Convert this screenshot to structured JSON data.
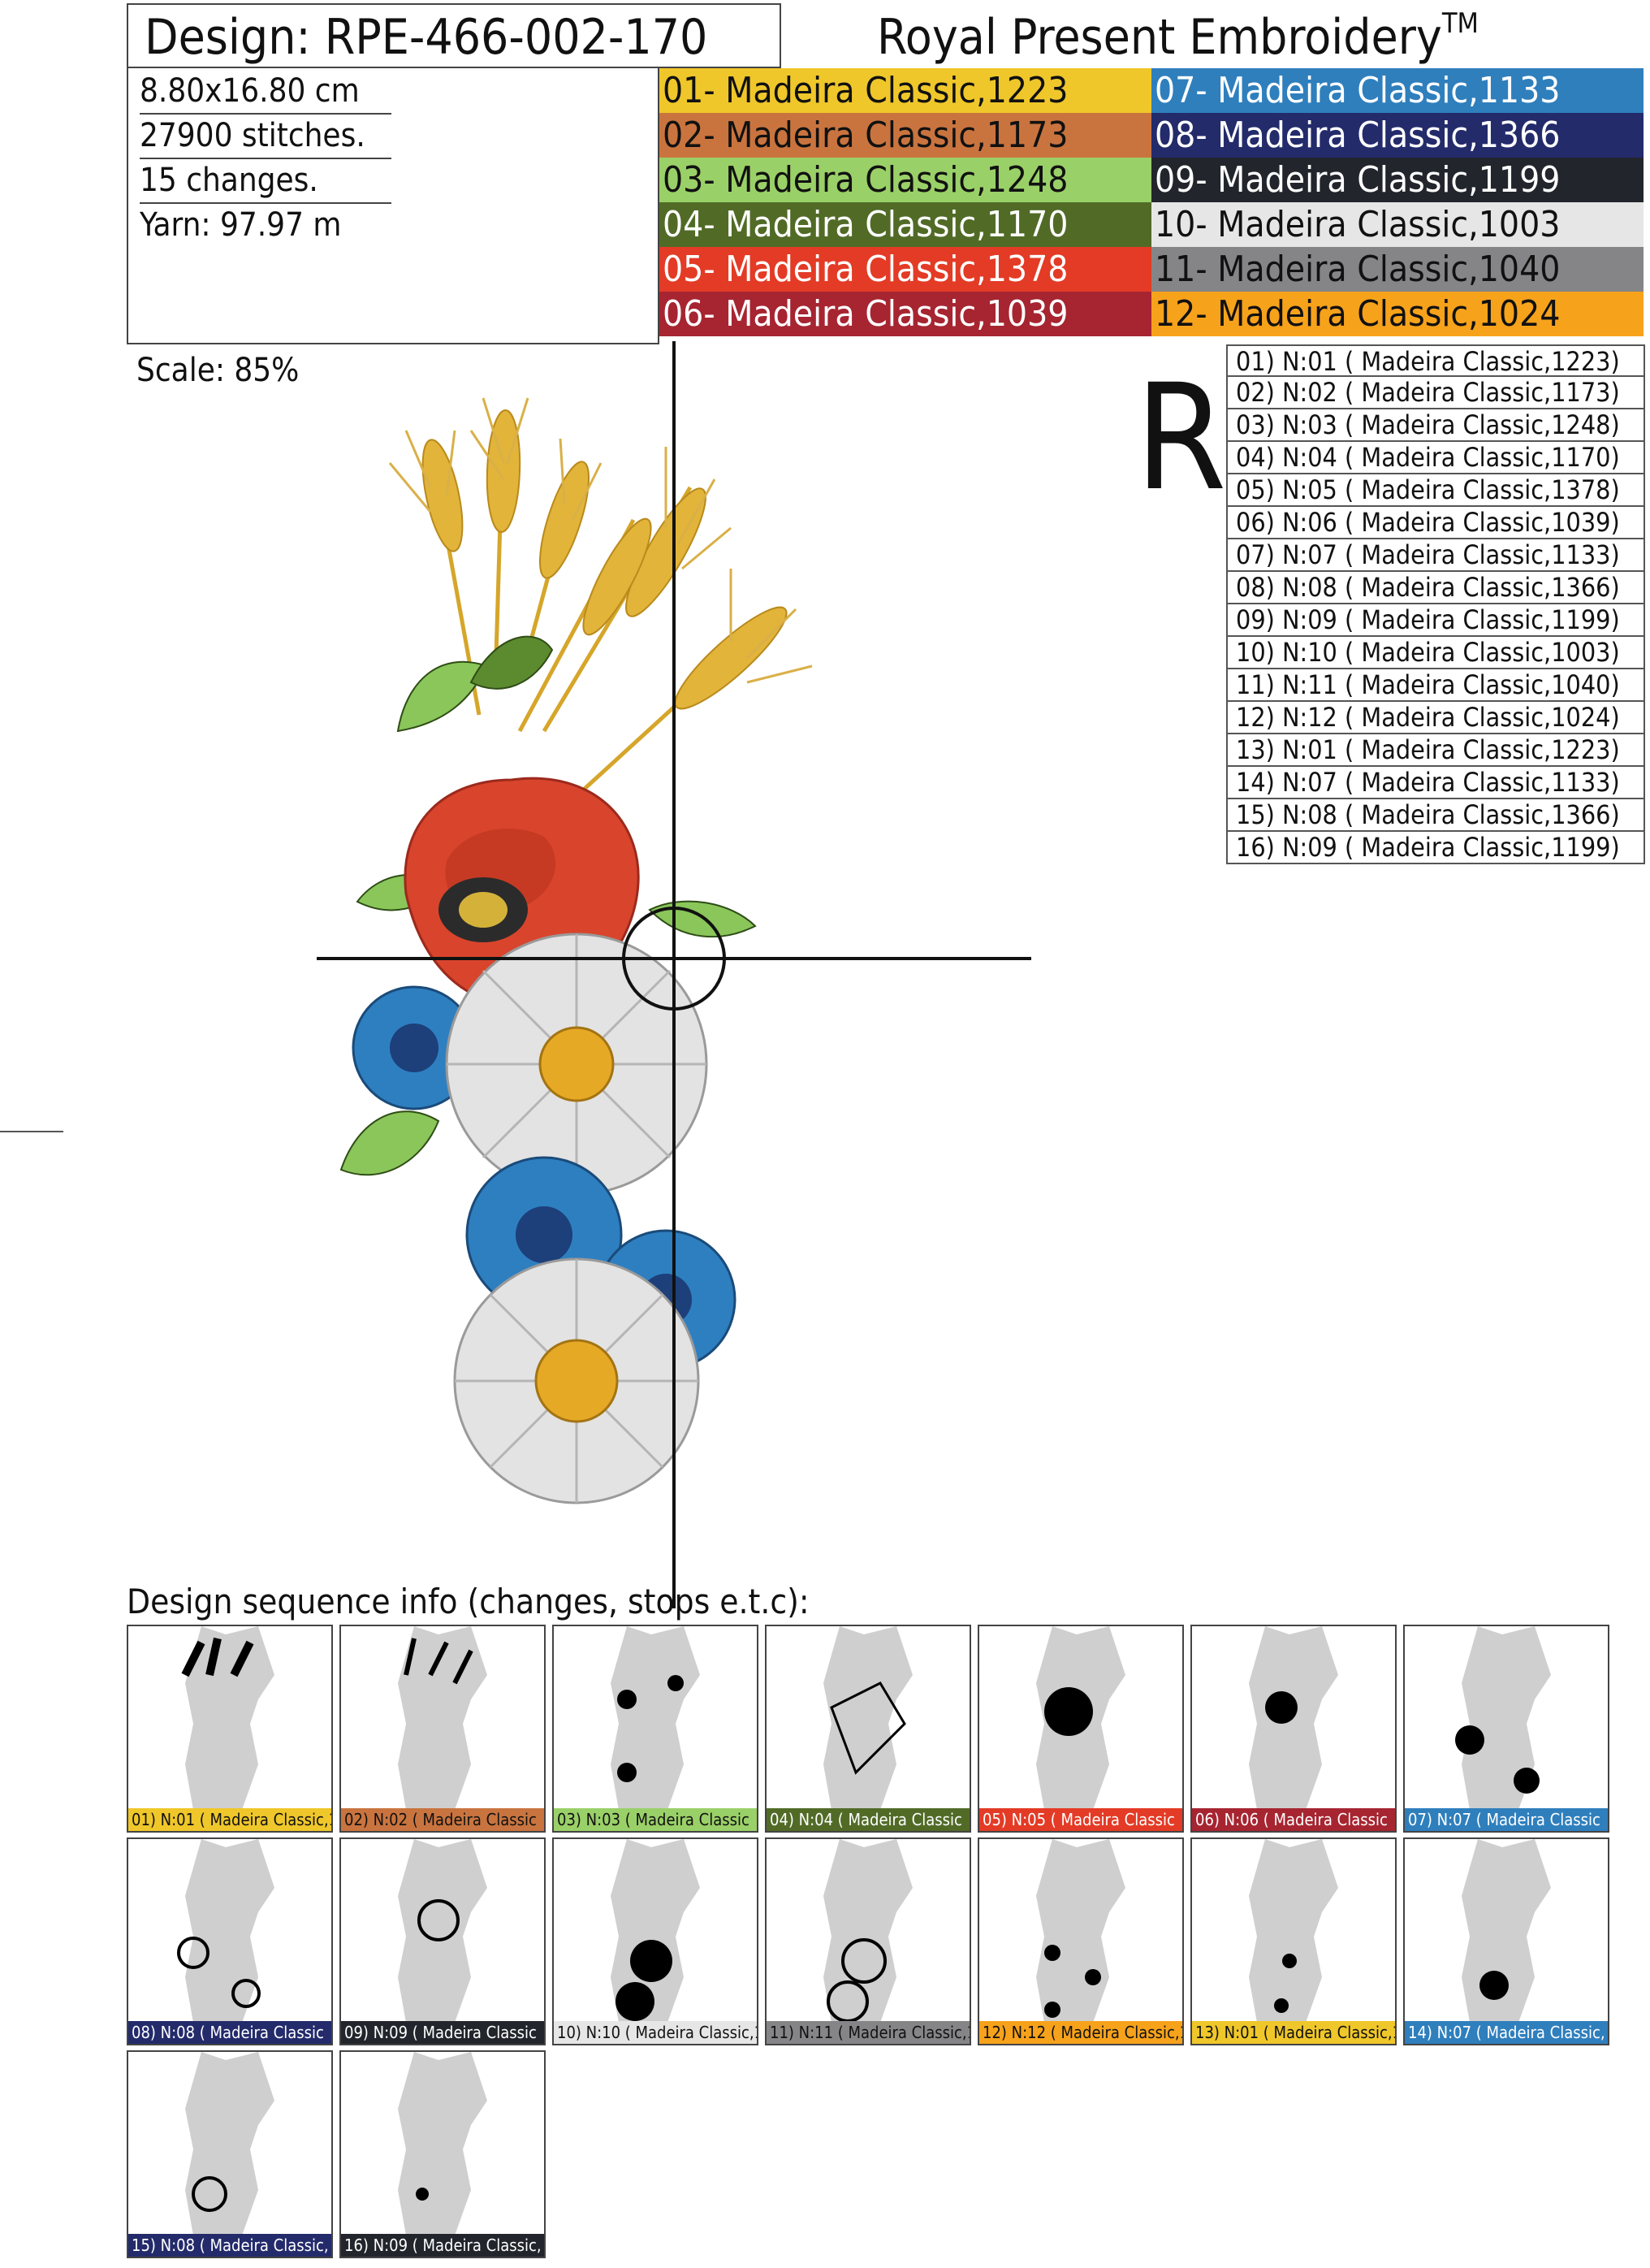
{
  "header": {
    "design_title": "Design: RPE-466-002-170",
    "brand": "Royal Present Embroidery",
    "trademark": "TM"
  },
  "info": {
    "size": "8.80x16.80 cm",
    "stitches": "27900 stitches.",
    "changes": "15 changes.",
    "yarn": "Yarn: 97.97 m"
  },
  "palette": [
    {
      "label": "01- Madeira Classic,1223",
      "color": "#efc72a",
      "text_color": "#111111"
    },
    {
      "label": "02- Madeira Classic,1173",
      "color": "#c9743f",
      "text_color": "#111111"
    },
    {
      "label": "03- Madeira Classic,1248",
      "color": "#9ad068",
      "text_color": "#111111"
    },
    {
      "label": "04- Madeira Classic,1170",
      "color": "#516b27",
      "text_color": "#ffffff"
    },
    {
      "label": "05- Madeira Classic,1378",
      "color": "#e33b26",
      "text_color": "#ffffff"
    },
    {
      "label": "06- Madeira Classic,1039",
      "color": "#a62531",
      "text_color": "#ffffff"
    },
    {
      "label": "07- Madeira Classic,1133",
      "color": "#2f7fbd",
      "text_color": "#ffffff"
    },
    {
      "label": "08- Madeira Classic,1366",
      "color": "#232b6b",
      "text_color": "#ffffff"
    },
    {
      "label": "09- Madeira Classic,1199",
      "color": "#22262c",
      "text_color": "#ffffff"
    },
    {
      "label": "10- Madeira Classic,1003",
      "color": "#e6e6e6",
      "text_color": "#111111"
    },
    {
      "label": "11- Madeira Classic,1040",
      "color": "#858587",
      "text_color": "#111111"
    },
    {
      "label": "12- Madeira Classic,1024",
      "color": "#f7a21b",
      "text_color": "#111111"
    }
  ],
  "scale": "Scale: 85%",
  "orientation_mark": "R",
  "sequence": [
    "01) N:01 ( Madeira Classic,1223)",
    "02) N:02 ( Madeira Classic,1173)",
    "03) N:03 ( Madeira Classic,1248)",
    "04) N:04 ( Madeira Classic,1170)",
    "05) N:05 ( Madeira Classic,1378)",
    "06) N:06 ( Madeira Classic,1039)",
    "07) N:07 ( Madeira Classic,1133)",
    "08) N:08 ( Madeira Classic,1366)",
    "09) N:09 ( Madeira Classic,1199)",
    "10) N:10 ( Madeira Classic,1003)",
    "11) N:11 ( Madeira Classic,1040)",
    "12) N:12 ( Madeira Classic,1024)",
    "13) N:01 ( Madeira Classic,1223)",
    "14) N:07 ( Madeira Classic,1133)",
    "15) N:08 ( Madeira Classic,1366)",
    "16) N:09 ( Madeira Classic,1199)"
  ],
  "sequence_caption": "Design sequence info (changes, stops e.t.c):",
  "thumbnails": [
    {
      "label": "01) N:01 ( Madeira Classic,1",
      "color": "#efc72a",
      "text_color": "#111111"
    },
    {
      "label": "02) N:02 ( Madeira Classic",
      "color": "#c9743f",
      "text_color": "#111111"
    },
    {
      "label": "03) N:03 ( Madeira Classic",
      "color": "#9ad068",
      "text_color": "#111111"
    },
    {
      "label": "04) N:04 ( Madeira Classic",
      "color": "#516b27",
      "text_color": "#ffffff"
    },
    {
      "label": "05) N:05 ( Madeira Classic",
      "color": "#e33b26",
      "text_color": "#ffffff"
    },
    {
      "label": "06) N:06 ( Madeira Classic",
      "color": "#a62531",
      "text_color": "#ffffff"
    },
    {
      "label": "07) N:07 ( Madeira Classic",
      "color": "#2f7fbd",
      "text_color": "#ffffff"
    },
    {
      "label": "08) N:08 ( Madeira Classic",
      "color": "#232b6b",
      "text_color": "#ffffff"
    },
    {
      "label": "09) N:09 ( Madeira Classic",
      "color": "#22262c",
      "text_color": "#ffffff"
    },
    {
      "label": "10) N:10 ( Madeira Classic,1",
      "color": "#e6e6e6",
      "text_color": "#111111"
    },
    {
      "label": "11) N:11 ( Madeira Classic,10",
      "color": "#858587",
      "text_color": "#111111"
    },
    {
      "label": "12) N:12 ( Madeira Classic,1",
      "color": "#f7a21b",
      "text_color": "#111111"
    },
    {
      "label": "13) N:01 ( Madeira Classic,1",
      "color": "#efc72a",
      "text_color": "#111111"
    },
    {
      "label": "14) N:07 ( Madeira Classic,",
      "color": "#2f7fbd",
      "text_color": "#ffffff"
    },
    {
      "label": "15) N:08 ( Madeira Classic,",
      "color": "#232b6b",
      "text_color": "#ffffff"
    },
    {
      "label": "16) N:09 ( Madeira Classic,",
      "color": "#22262c",
      "text_color": "#ffffff"
    }
  ]
}
